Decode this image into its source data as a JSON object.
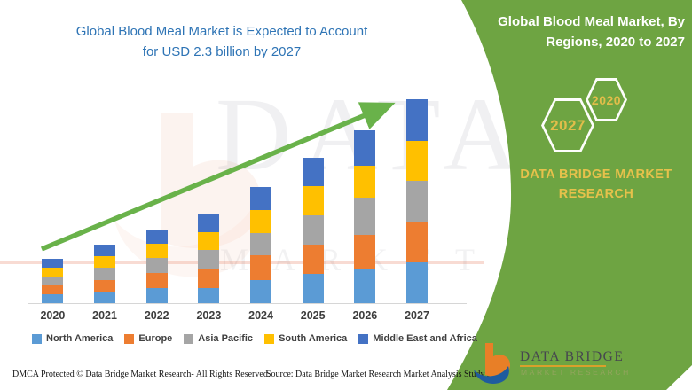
{
  "chart": {
    "title_lines": [
      "Global Blood Meal Market is Expected to Account",
      "for USD 2.3 billion by 2027"
    ],
    "title_color": "#2e74b5",
    "trend_arrow_color": "#69b24a"
  },
  "chart_data": {
    "type": "bar",
    "stacked": true,
    "title": "Global Blood Meal Market is Expected to Account for USD 2.3 billion by 2027",
    "unit": "USD billion",
    "categories": [
      "2020",
      "2021",
      "2022",
      "2023",
      "2024",
      "2025",
      "2026",
      "2027"
    ],
    "series": [
      {
        "name": "North America",
        "color": "#5b9bd5",
        "values": [
          0.1,
          0.13,
          0.17,
          0.17,
          0.26,
          0.33,
          0.38,
          0.46
        ]
      },
      {
        "name": "Europe",
        "color": "#ed7d31",
        "values": [
          0.1,
          0.13,
          0.17,
          0.21,
          0.28,
          0.33,
          0.39,
          0.45
        ]
      },
      {
        "name": "Asia Pacific",
        "color": "#a5a5a5",
        "values": [
          0.1,
          0.14,
          0.17,
          0.22,
          0.25,
          0.33,
          0.42,
          0.47
        ]
      },
      {
        "name": "South America",
        "color": "#ffc000",
        "values": [
          0.1,
          0.13,
          0.16,
          0.2,
          0.26,
          0.33,
          0.36,
          0.45
        ]
      },
      {
        "name": "Middle East and Africa",
        "color": "#4472c4",
        "values": [
          0.1,
          0.13,
          0.16,
          0.2,
          0.26,
          0.32,
          0.4,
          0.47
        ]
      }
    ],
    "totals": [
      0.5,
      0.66,
      0.83,
      1.0,
      1.31,
      1.64,
      1.95,
      2.3
    ],
    "ylim": [
      0,
      2.3
    ],
    "grid": false,
    "legend_position": "bottom",
    "annotations": [
      "upward green trend arrow from 2020 to 2027 bar top"
    ]
  },
  "right_panel": {
    "bg_color": "#6ea442",
    "title_lines": [
      "Global Blood Meal Market, By",
      "Regions, 2020 to 2027"
    ],
    "hexagon_left_label": "2027",
    "hexagon_right_label": "2020",
    "hexagon_text_color": "#e2bd4a",
    "brand_lines": [
      "DATA BRIDGE MARKET",
      "RESEARCH"
    ],
    "brand_text_color": "#e6c14b"
  },
  "logo": {
    "name": "DATA BRIDGE",
    "subtitle": "MARKET RESEARCH"
  },
  "watermark": {
    "line1": "DATA BRIDGE",
    "line2": "MARKET RESEARCH"
  },
  "footer": {
    "left": "DMCA Protected © Data Bridge Market Research- All Rights Reserved.",
    "source": "Source: Data Bridge Market Research Market Analysis Study 2020"
  }
}
